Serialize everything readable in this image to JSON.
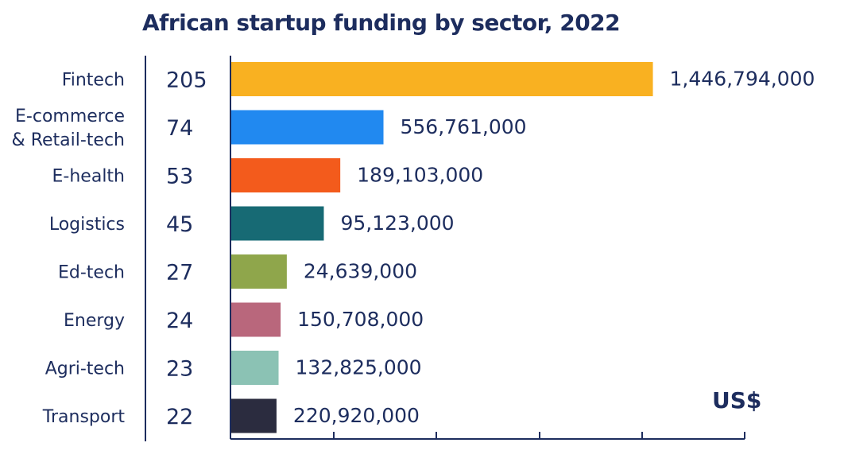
{
  "chart_data": {
    "type": "bar",
    "orientation": "horizontal",
    "title": "African startup funding by sector, 2022",
    "unit": "US$",
    "categories": [
      [
        "Fintech"
      ],
      [
        "E-commerce",
        "& Retail-tech"
      ],
      [
        "E-health"
      ],
      [
        "Logistics"
      ],
      [
        "Ed-tech"
      ],
      [
        "Energy"
      ],
      [
        "Agri-tech"
      ],
      [
        "Transport"
      ]
    ],
    "counts": [
      "205",
      "74",
      "53",
      "45",
      "27",
      "24",
      "23",
      "22"
    ],
    "value_labels": [
      "1,446,794,000",
      "556,761,000",
      "189,103,000",
      "95,123,000",
      "24,639,000",
      "150,708,000",
      "132,825,000",
      "220,920,000"
    ],
    "values": [
      205,
      74,
      53,
      45,
      27,
      24,
      23,
      22
    ],
    "xlim": [
      0,
      250
    ],
    "colors": [
      "#f9b121",
      "#2189f0",
      "#f35b1c",
      "#176a74",
      "#8fa64b",
      "#b9677c",
      "#8bc2b4",
      "#2b2c3f"
    ],
    "grid": false
  }
}
